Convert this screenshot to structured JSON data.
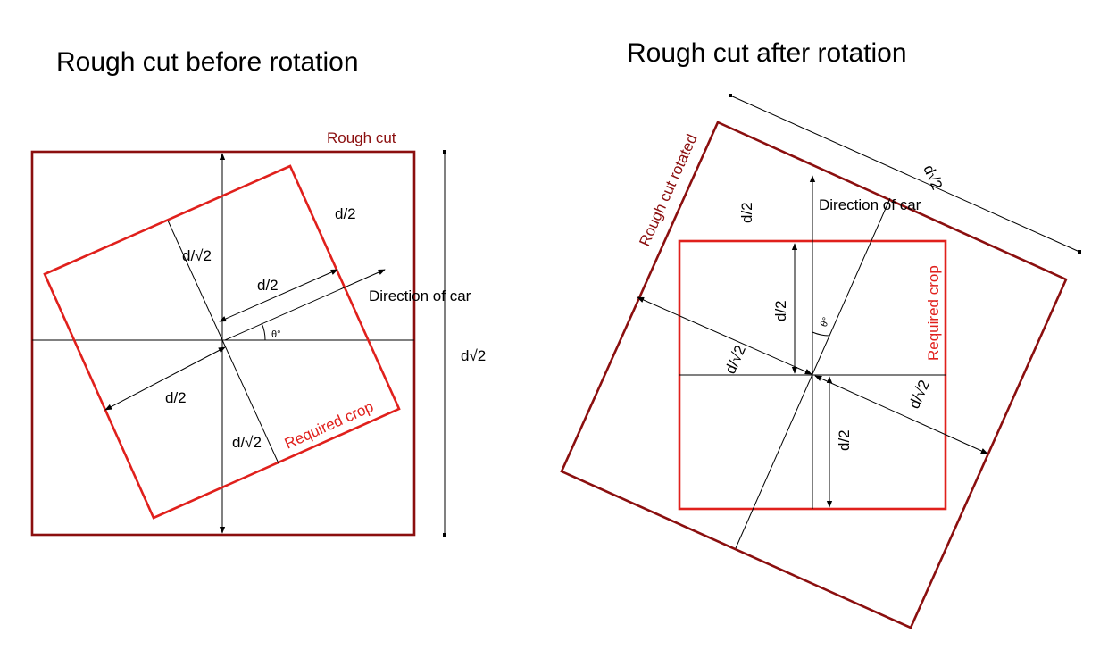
{
  "left_panel": {
    "title": "Rough cut before rotation",
    "rough_cut_label": "Rough cut",
    "required_crop_label": "Required crop",
    "direction_label": "Direction of car",
    "theta_label": "θ°",
    "dim_half_top": "d/2",
    "dim_half_center_upper": "d/2",
    "dim_half_center_lower": "d/2",
    "dim_root2_upper": "d/√2",
    "dim_root2_lower": "d/√2",
    "dim_side": "d√2"
  },
  "right_panel": {
    "title": "Rough cut after rotation",
    "rough_cut_label": "Rough cut rotated",
    "required_crop_label": "Required crop",
    "direction_label": "Direction of car",
    "theta_label": "θ°",
    "dim_top": "d√2",
    "dim_half_top_left": "d/2",
    "dim_half_vertical_upper": "d/2",
    "dim_half_vertical_lower": "d/2",
    "dim_root2_left": "d/√2",
    "dim_root2_right": "d/√2"
  },
  "colors": {
    "rough_cut": "#8b0f0f",
    "required_crop": "#e0201c",
    "lines": "#000000"
  }
}
